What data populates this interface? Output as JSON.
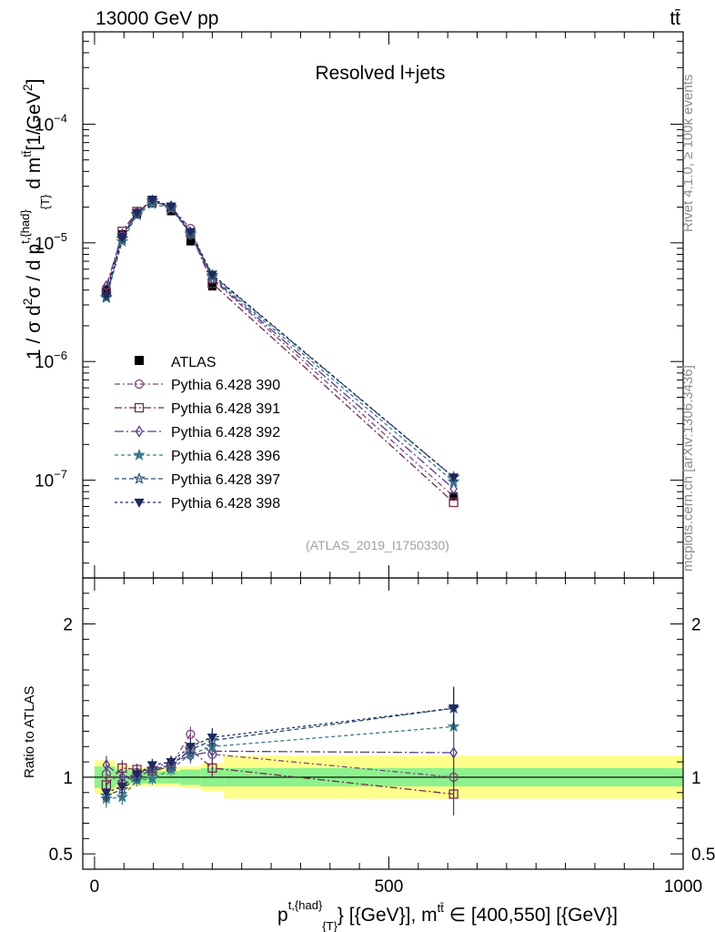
{
  "header": {
    "energy": "13000 GeV pp",
    "process": "tt̄"
  },
  "side_labels": {
    "rivet": "Rivet 4.1.0, ≥ 100k events",
    "source": "mcplots.cern.ch [arXiv:1306.3436]"
  },
  "chart_data": {
    "type": "line",
    "title": "Resolved l+jets",
    "analysis_id": "(ATLAS_2019_I1750330)",
    "ylabel_main": "1 / σ d²σ / d p^{t,{had}}_{T} d m^{tt̄} [1/GeV²]",
    "ylabel_ratio": "Ratio to ATLAS",
    "xlabel": "p^{t,{had}}_{T} [{GeV}], m^{tt̄} ∈ [400,550] [{GeV}]",
    "xlim": [
      -20,
      1000
    ],
    "ylim_main": [
      1.5e-08,
      0.0006
    ],
    "ylim_ratio": [
      0.4,
      2.3
    ],
    "x_ticks": [
      0,
      500,
      1000
    ],
    "x_tick_labels": [
      "0",
      "500",
      "1000"
    ],
    "y_ticks_main": [
      1e-07,
      1e-06,
      1e-05,
      0.0001
    ],
    "y_ticks_main_labels": [
      [
        "10",
        "−7"
      ],
      [
        "10",
        "−6"
      ],
      [
        "10",
        "−5"
      ],
      [
        "10",
        "−4"
      ]
    ],
    "y_ticks_ratio": [
      0.5,
      1,
      2
    ],
    "y_ticks_ratio_labels": [
      "0.5",
      "1",
      "2"
    ],
    "x": [
      20,
      47,
      72,
      98,
      130,
      163,
      200,
      610
    ],
    "data": {
      "name": "ATLAS",
      "values": [
        4e-06,
        1.18e-05,
        1.75e-05,
        2.15e-05,
        1.85e-05,
        1.03e-05,
        4.3e-06,
        7.3e-08
      ],
      "band_edges": [
        0,
        35,
        60,
        85,
        115,
        145,
        180,
        220,
        1000
      ],
      "band_inner": [
        0.07,
        0.05,
        0.04,
        0.04,
        0.04,
        0.05,
        0.06,
        0.06
      ],
      "band_outer": [
        0.11,
        0.08,
        0.06,
        0.06,
        0.06,
        0.07,
        0.09,
        0.14
      ]
    },
    "series": [
      {
        "name": "Pythia 6.428 390",
        "color": "#7a4a7a",
        "marker": "circle-open",
        "dash": "6,3,2,3",
        "ratio": [
          1.02,
          0.96,
          1.03,
          1.05,
          1.08,
          1.28,
          1.15,
          1.0
        ],
        "ratio_err": [
          0.06,
          0.05,
          0.04,
          0.04,
          0.04,
          0.05,
          0.06,
          0.14
        ]
      },
      {
        "name": "Pythia 6.428 391",
        "color": "#6e2e4e",
        "marker": "square-open",
        "dash": "8,3,2,3",
        "ratio": [
          0.95,
          1.06,
          1.05,
          1.04,
          1.07,
          1.18,
          1.06,
          0.89
        ],
        "ratio_err": [
          0.06,
          0.05,
          0.04,
          0.04,
          0.04,
          0.05,
          0.06,
          0.14
        ]
      },
      {
        "name": "Pythia 6.428 392",
        "color": "#5a3a8e",
        "marker": "diamond-open",
        "dash": "10,3,2,3",
        "ratio": [
          1.08,
          1.0,
          1.02,
          1.06,
          1.1,
          1.14,
          1.17,
          1.16
        ],
        "ratio_err": [
          0.06,
          0.05,
          0.04,
          0.04,
          0.04,
          0.05,
          0.06,
          0.14
        ]
      },
      {
        "name": "Pythia 6.428 396",
        "color": "#3a7a8a",
        "marker": "star-filled",
        "dash": "4,3",
        "ratio": [
          0.86,
          0.87,
          0.98,
          0.99,
          1.05,
          1.15,
          1.2,
          1.33
        ],
        "ratio_err": [
          0.06,
          0.05,
          0.04,
          0.04,
          0.04,
          0.05,
          0.06,
          0.14
        ]
      },
      {
        "name": "Pythia 6.428 397",
        "color": "#2e4e72",
        "marker": "star-open",
        "dash": "5,3",
        "ratio": [
          0.88,
          0.92,
          1.0,
          1.05,
          1.08,
          1.18,
          1.24,
          1.45
        ],
        "ratio_err": [
          0.06,
          0.05,
          0.04,
          0.04,
          0.04,
          0.05,
          0.06,
          0.14
        ]
      },
      {
        "name": "Pythia 6.428 398",
        "color": "#1e2a5e",
        "marker": "triangle-down-filled",
        "dash": "3,3",
        "ratio": [
          0.9,
          0.94,
          1.02,
          1.08,
          1.1,
          1.2,
          1.26,
          1.45
        ],
        "ratio_err": [
          0.06,
          0.05,
          0.04,
          0.04,
          0.04,
          0.05,
          0.06,
          0.14
        ]
      }
    ]
  }
}
